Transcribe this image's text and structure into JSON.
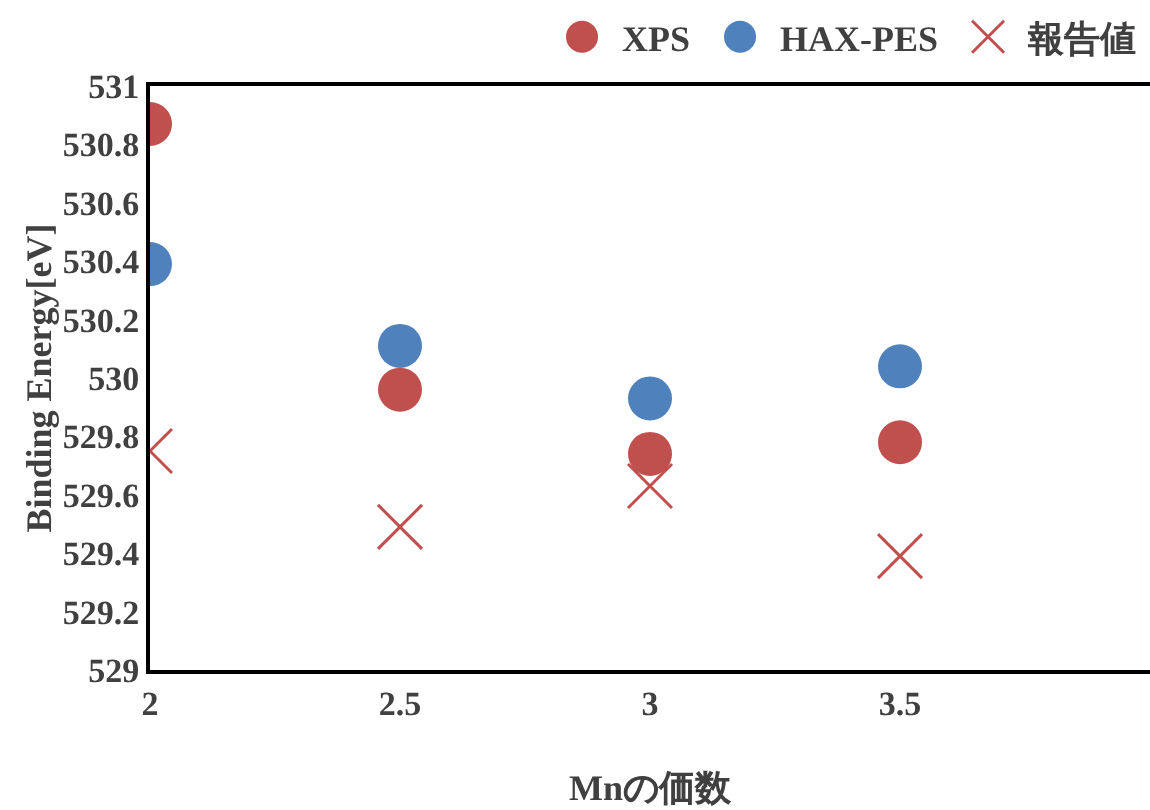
{
  "chart_data": {
    "type": "scatter",
    "xlabel": "Mnの価数",
    "ylabel": "Binding Energy[eV]",
    "x": [
      2,
      2.5,
      3,
      3.5
    ],
    "series": [
      {
        "name": "XPS",
        "color": "#c0504d",
        "marker": "circle",
        "values": [
          530.87,
          529.96,
          529.74,
          529.78
        ]
      },
      {
        "name": "HAX-PES",
        "color": "#4f81bd",
        "marker": "circle",
        "values": [
          530.39,
          530.11,
          529.93,
          530.04
        ]
      },
      {
        "name": "報告値",
        "color": "#c0504d",
        "marker": "cross",
        "values": [
          529.75,
          529.49,
          529.63,
          529.39
        ]
      }
    ],
    "xlim": [
      2,
      4
    ],
    "xticks": [
      2,
      2.5,
      3,
      3.5
    ],
    "ylim": [
      529,
      531
    ],
    "yticks": [
      529,
      529.2,
      529.4,
      529.6,
      529.8,
      530,
      530.2,
      530.4,
      530.6,
      530.8,
      531
    ],
    "grid": false,
    "legend": "top right"
  }
}
